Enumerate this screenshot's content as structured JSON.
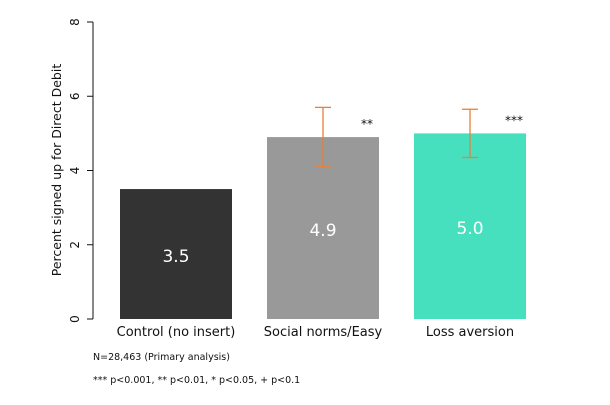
{
  "chart_data": {
    "type": "bar",
    "categories": [
      "Control (no insert)",
      "Social norms/Easy",
      "Loss aversion"
    ],
    "values": [
      3.5,
      4.9,
      5.0
    ],
    "value_labels": [
      "3.5",
      "4.9",
      "5.0"
    ],
    "error_bars": [
      null,
      [
        4.1,
        5.7
      ],
      [
        4.35,
        5.65
      ]
    ],
    "significance": [
      "",
      "**",
      "***"
    ],
    "colors": [
      "#333333",
      "#999999",
      "#47e0bf"
    ],
    "error_color": "#e8803a",
    "ylabel": "Percent signed up for Direct Debit",
    "ylim": [
      0,
      8
    ],
    "yticks": [
      0,
      2,
      4,
      6,
      8
    ],
    "grid": false,
    "notes": [
      "N=28,463 (Primary analysis)",
      "*** p<0.001, ** p<0.01, * p<0.05, + p<0.1"
    ]
  }
}
